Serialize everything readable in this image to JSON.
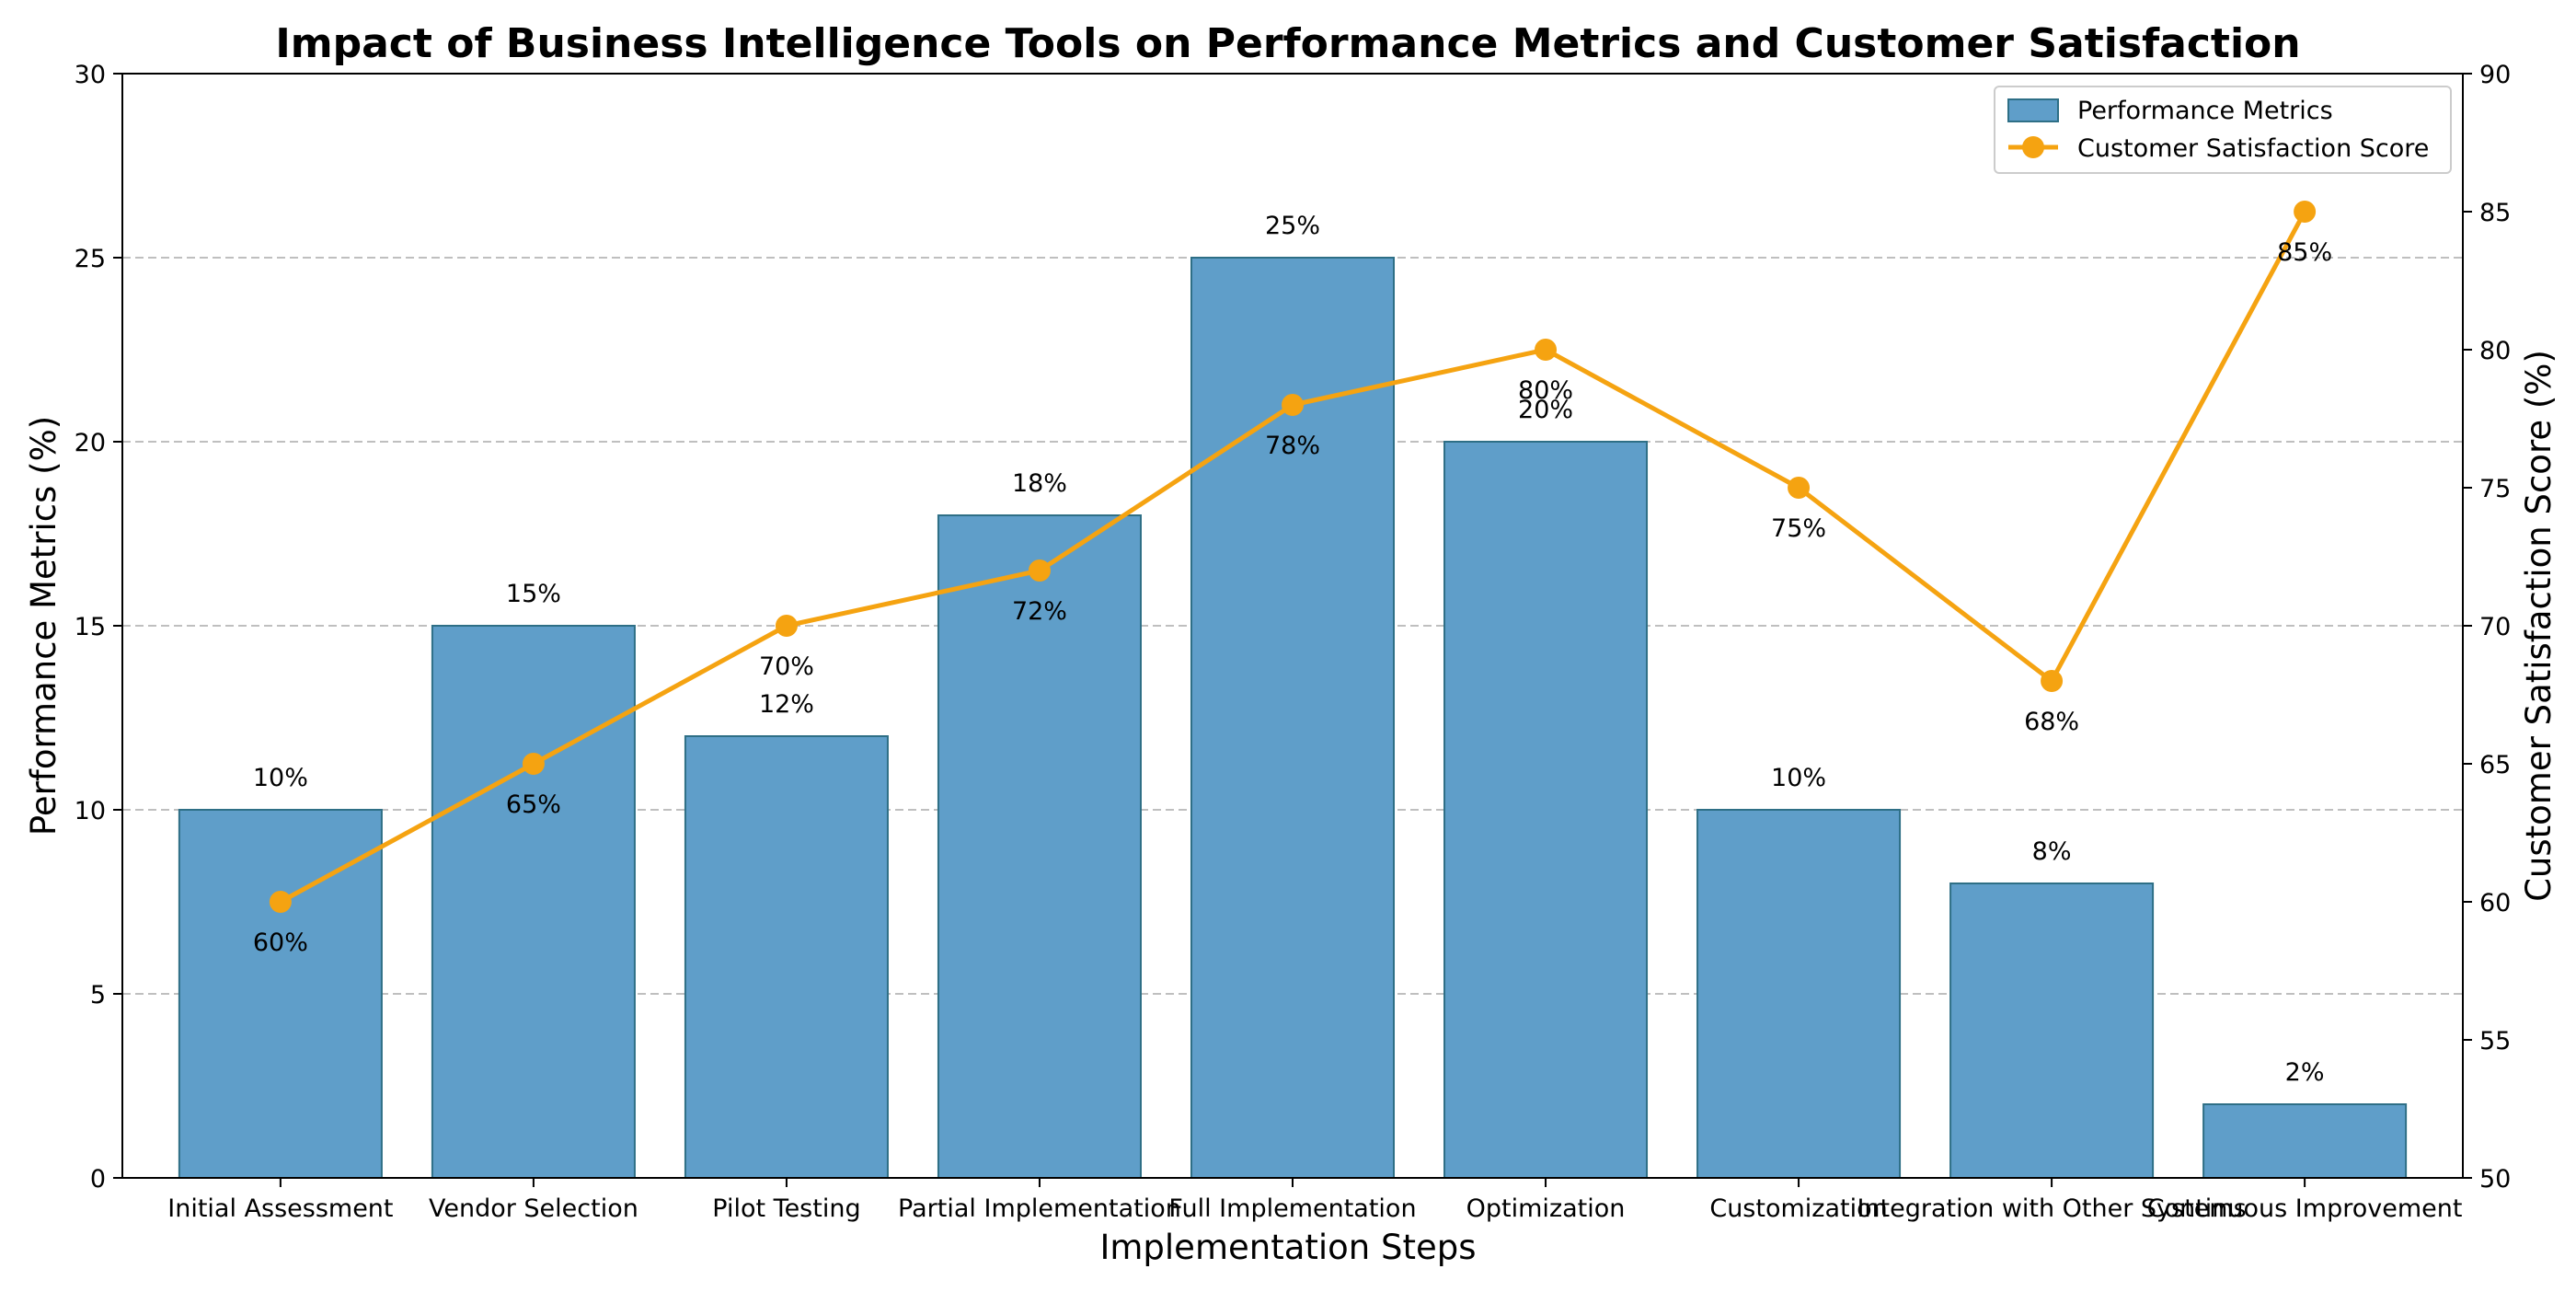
{
  "chart_data": {
    "type": "bar",
    "title": "Impact of Business Intelligence Tools on Performance Metrics and Customer Satisfaction",
    "xlabel": "Implementation Steps",
    "ylabel": "Performance Metrics (%)",
    "y2label": "Customer Satisfaction Score (%)",
    "categories": [
      "Initial Assessment",
      "Vendor Selection",
      "Pilot Testing",
      "Partial Implementation",
      "Full Implementation",
      "Optimization",
      "Customization",
      "Integration with Other Systems",
      "Continuous Improvement"
    ],
    "ylim": [
      0,
      30
    ],
    "y2lim": [
      50,
      90
    ],
    "yticks": [
      0,
      5,
      10,
      15,
      20,
      25,
      30
    ],
    "y2ticks": [
      50,
      55,
      60,
      65,
      70,
      75,
      80,
      85,
      90
    ],
    "grid": "horizontal dashed",
    "legend_position": "top-right",
    "series": [
      {
        "name": "Performance Metrics",
        "kind": "bar",
        "axis": "left",
        "color": "#5f9ec9",
        "edge_color": "#2e6f86",
        "values": [
          10,
          15,
          12,
          18,
          25,
          20,
          10,
          8,
          2
        ],
        "labels": [
          "10%",
          "15%",
          "12%",
          "18%",
          "25%",
          "20%",
          "10%",
          "8%",
          "2%"
        ]
      },
      {
        "name": "Customer Satisfaction Score",
        "kind": "line",
        "axis": "right",
        "color": "#f5a311",
        "values": [
          60,
          65,
          70,
          72,
          78,
          80,
          75,
          68,
          85
        ],
        "labels": [
          "60%",
          "65%",
          "70%",
          "72%",
          "78%",
          "80%",
          "75%",
          "68%",
          "85%"
        ]
      }
    ]
  }
}
